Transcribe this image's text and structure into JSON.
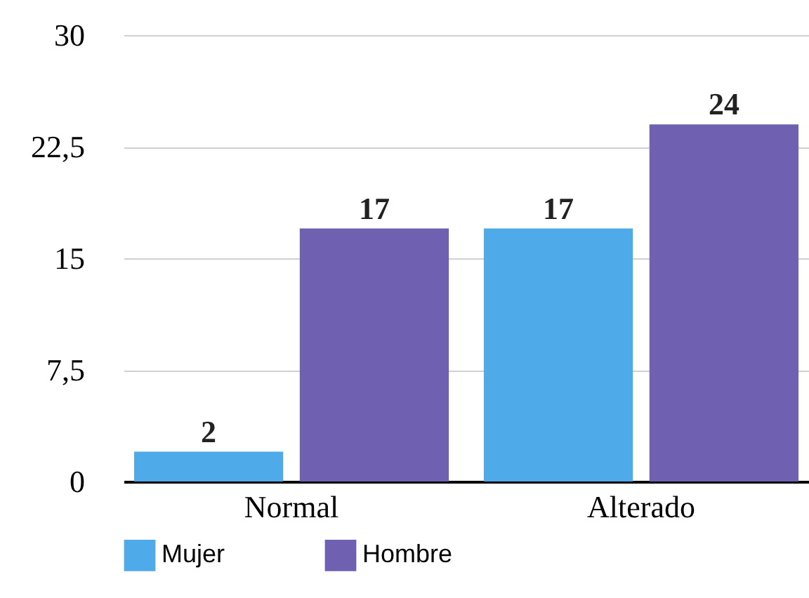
{
  "chart_data": {
    "type": "bar",
    "categories": [
      "Normal",
      "Alterado"
    ],
    "series": [
      {
        "name": "Mujer",
        "color": "#4eaae8",
        "values": [
          2,
          17
        ]
      },
      {
        "name": "Hombre",
        "color": "#6f60b2",
        "values": [
          17,
          24
        ]
      }
    ],
    "ylim": [
      0,
      30
    ],
    "yticks": [
      0,
      {
        "value": 7.5,
        "label": "7,5"
      },
      15,
      {
        "value": 22.5,
        "label": "22,5"
      },
      30
    ],
    "grid": "y",
    "legend": "bottom",
    "data_labels": true
  }
}
